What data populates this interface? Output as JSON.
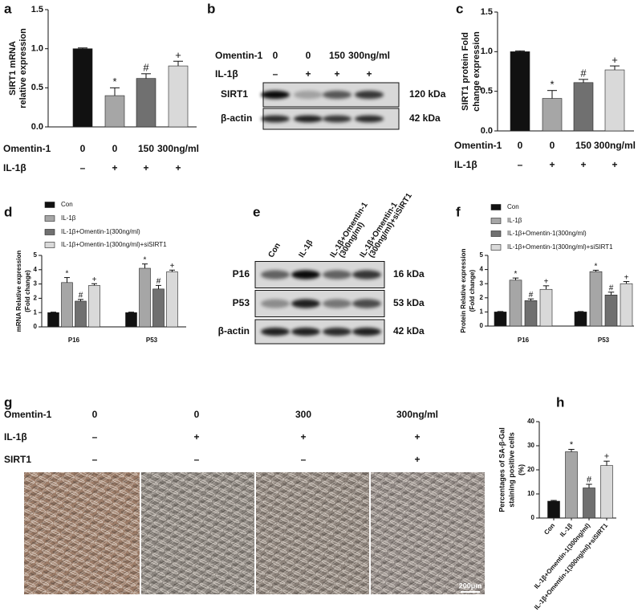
{
  "panel_letters": [
    "a",
    "b",
    "c",
    "d",
    "e",
    "f",
    "g",
    "h"
  ],
  "chart_data": [
    {
      "type": "bar",
      "ylabel": [
        "SIRT1 mRNA",
        "relative expression"
      ],
      "values": [
        1.0,
        0.4,
        0.62,
        0.78
      ],
      "errors": [
        0.01,
        0.1,
        0.06,
        0.06
      ],
      "colors": [
        "#111111",
        "#a6a6a6",
        "#707070",
        "#d9d9d9"
      ],
      "annotations": [
        null,
        "*",
        "#",
        "+"
      ],
      "ylim": [
        0,
        1.5
      ],
      "yticks": [
        {
          "value": 0,
          "label": "0.0"
        },
        {
          "value": 0.5,
          "label": "0.5"
        },
        {
          "value": 1,
          "label": "1.0"
        },
        {
          "value": 1.5,
          "label": "1.5"
        }
      ],
      "conditions": [
        {
          "label": "Omentin-1",
          "values": [
            "0",
            "0",
            "150",
            "300ng/ml"
          ]
        },
        {
          "label": "IL-1β",
          "values": [
            "–",
            "+",
            "+",
            "+"
          ]
        }
      ]
    },
    {
      "type": "bar",
      "ylabel": [
        "SIRT1 protein Fold",
        "change expression"
      ],
      "values": [
        1.0,
        0.41,
        0.61,
        0.77
      ],
      "errors": [
        0.01,
        0.1,
        0.04,
        0.05
      ],
      "colors": [
        "#111111",
        "#a6a6a6",
        "#707070",
        "#d9d9d9"
      ],
      "annotations": [
        null,
        "*",
        "#",
        "+"
      ],
      "ylim": [
        0,
        1.5
      ],
      "yticks": [
        {
          "value": 0,
          "label": "0.0"
        },
        {
          "value": 0.5,
          "label": "0.5"
        },
        {
          "value": 1,
          "label": "1.0"
        },
        {
          "value": 1.5,
          "label": "1.5"
        }
      ],
      "conditions": [
        {
          "label": "Omentin-1",
          "values": [
            "0",
            "0",
            "150",
            "300ng/ml"
          ]
        },
        {
          "label": "IL-1β",
          "values": [
            "–",
            "+",
            "+",
            "+"
          ]
        }
      ]
    },
    {
      "type": "grouped_bar",
      "ylabel": [
        "mRNA Relative expression",
        "(Fold change)"
      ],
      "categories": [
        "P16",
        "P53"
      ],
      "series": [
        {
          "name": "Con",
          "color": "#111111",
          "values": [
            1,
            1
          ],
          "errors": [
            0.03,
            0.03
          ],
          "annotations": [
            null,
            null
          ]
        },
        {
          "name": "IL-1β",
          "color": "#a6a6a6",
          "values": [
            3.1,
            4.1
          ],
          "errors": [
            0.35,
            0.3
          ],
          "annotations": [
            "*",
            "*"
          ]
        },
        {
          "name": "IL-1β+Omentin-1(300ng/ml)",
          "color": "#707070",
          "values": [
            1.8,
            2.65
          ],
          "errors": [
            0.12,
            0.25
          ],
          "annotations": [
            "#",
            "#"
          ]
        },
        {
          "name": "IL-1β+Omentin-1(300ng/ml)+siSIRT1",
          "color": "#d9d9d9",
          "values": [
            2.9,
            3.85
          ],
          "errors": [
            0.12,
            0.12
          ],
          "annotations": [
            "+",
            "+"
          ]
        }
      ],
      "ylim": [
        0,
        5
      ],
      "yticks": [
        0,
        1,
        2,
        3,
        4,
        5
      ]
    },
    {
      "type": "grouped_bar",
      "ylabel": [
        "Protein Relative expression",
        "(Fold change)"
      ],
      "categories": [
        "P16",
        "P53"
      ],
      "series": [
        {
          "name": "Con",
          "color": "#111111",
          "values": [
            1,
            1
          ],
          "errors": [
            0.03,
            0.03
          ],
          "annotations": [
            null,
            null
          ]
        },
        {
          "name": "IL-1β",
          "color": "#a6a6a6",
          "values": [
            3.25,
            3.85
          ],
          "errors": [
            0.15,
            0.1
          ],
          "annotations": [
            "*",
            "*"
          ]
        },
        {
          "name": "IL-1β+Omentin-1(300ng/ml)",
          "color": "#707070",
          "values": [
            1.8,
            2.2
          ],
          "errors": [
            0.12,
            0.2
          ],
          "annotations": [
            "#",
            "#"
          ]
        },
        {
          "name": "IL-1β+Omentin-1(300ng/ml)+siSIRT1",
          "color": "#d9d9d9",
          "values": [
            2.6,
            3.0
          ],
          "errors": [
            0.25,
            0.15
          ],
          "annotations": [
            "+",
            "+"
          ]
        }
      ],
      "ylim": [
        0,
        5
      ],
      "yticks": [
        0,
        1,
        2,
        3,
        4,
        5
      ]
    },
    {
      "type": "bar",
      "ylabel": [
        "Percentages of SA-β-Gal",
        "staining positive cells",
        "(%)"
      ],
      "categories": [
        "Con",
        "IL-1β",
        "IL-1β+Omentin-1(300ng/ml)",
        "IL-1β+Omentin-1(300ng/ml)+siSIRT1"
      ],
      "values": [
        7,
        27.5,
        12.5,
        21.8
      ],
      "errors": [
        0.3,
        1,
        1.5,
        1.8
      ],
      "colors": [
        "#111111",
        "#a6a6a6",
        "#707070",
        "#d9d9d9"
      ],
      "annotations": [
        null,
        "*",
        "#",
        "+"
      ],
      "ylim": [
        0,
        40
      ],
      "yticks": [
        0,
        10,
        20,
        30,
        40
      ]
    }
  ],
  "blot_b": {
    "header": [
      {
        "label": "Omentin-1",
        "values": [
          "0",
          "0",
          "150",
          "300ng/ml"
        ]
      },
      {
        "label": "IL-1β",
        "values": [
          "–",
          "+",
          "+",
          "+"
        ]
      }
    ],
    "rows": [
      {
        "label": "SIRT1",
        "size": "120 kDa"
      },
      {
        "label": "β-actin",
        "size": "42 kDa"
      }
    ]
  },
  "blot_e": {
    "columns": [
      [
        "Con"
      ],
      [
        "IL-1β"
      ],
      [
        "IL-1β+Omentin-1",
        "(300ng/ml)"
      ],
      [
        "IL-1β+Omentin-1",
        "(300ng/ml)+siSIRT1"
      ]
    ],
    "rows": [
      {
        "label": "P16",
        "size": "16 kDa"
      },
      {
        "label": "P53",
        "size": "53 kDa"
      },
      {
        "label": "β-actin",
        "size": "42 kDa"
      }
    ]
  },
  "panel_g": {
    "rows": [
      {
        "label": "Omentin-1",
        "values": [
          "0",
          "0",
          "300",
          "300ng/ml"
        ]
      },
      {
        "label": "IL-1β",
        "values": [
          "–",
          "+",
          "+",
          "+"
        ]
      },
      {
        "label": "SIRT1",
        "values": [
          "–",
          "–",
          "–",
          "+"
        ]
      }
    ],
    "scale_bar": "200μm"
  }
}
